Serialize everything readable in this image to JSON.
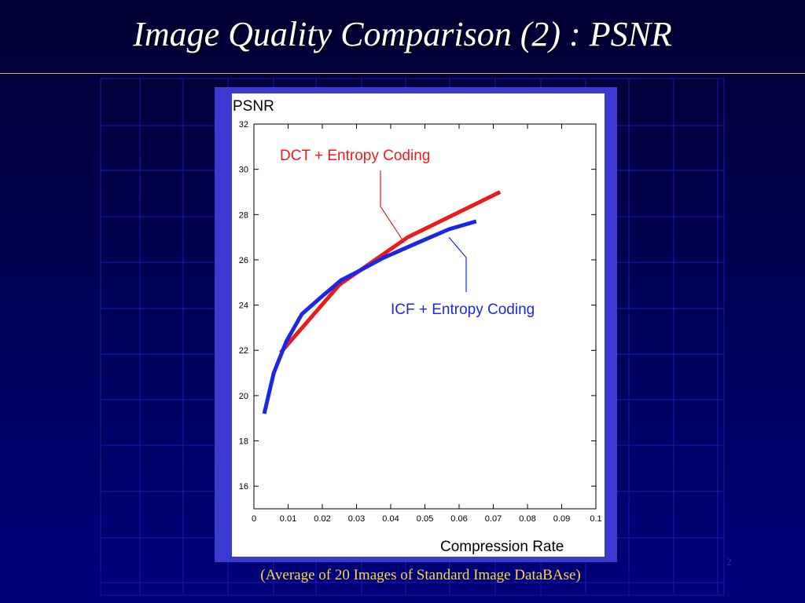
{
  "slide": {
    "title": "Image Quality Comparison (2) : PSNR",
    "caption": "(Average of 20 Images of Standard Image DataBAse)",
    "page_number": "2"
  },
  "colors": {
    "background": "#00005a",
    "grid": "#1a1ab0",
    "frame": "#3a3ad0",
    "title_rule": "#c9b45a",
    "caption": "#ffd24a",
    "dct_series": "#e81c1c",
    "icf_series": "#1a28e6"
  },
  "chart_data": {
    "type": "line",
    "ylabel": "PSNR",
    "xlabel": "Compression Rate",
    "xlim": [
      0,
      0.1
    ],
    "ylim": [
      15,
      32
    ],
    "x_ticks": [
      "0",
      "0.01",
      "0.02",
      "0.03",
      "0.04",
      "0.05",
      "0.06",
      "0.07",
      "0.08",
      "0.09",
      "0.1"
    ],
    "y_ticks": [
      "16",
      "18",
      "20",
      "22",
      "24",
      "26",
      "28",
      "30",
      "32"
    ],
    "grid": false,
    "legend": "callout labels",
    "series": [
      {
        "name": "DCT + Entropy Coding",
        "color": "#e81c1c",
        "x": [
          0.0078,
          0.025,
          0.045,
          0.072
        ],
        "y": [
          21.9,
          24.9,
          27.0,
          29.0
        ]
      },
      {
        "name": "ICF + Entropy Coding",
        "color": "#1a28e6",
        "x": [
          0.003,
          0.0058,
          0.0095,
          0.014,
          0.02,
          0.0255,
          0.03,
          0.038,
          0.047,
          0.057,
          0.065
        ],
        "y": [
          19.2,
          21.0,
          22.4,
          23.6,
          24.4,
          25.1,
          25.45,
          26.1,
          26.7,
          27.35,
          27.7
        ]
      }
    ]
  }
}
